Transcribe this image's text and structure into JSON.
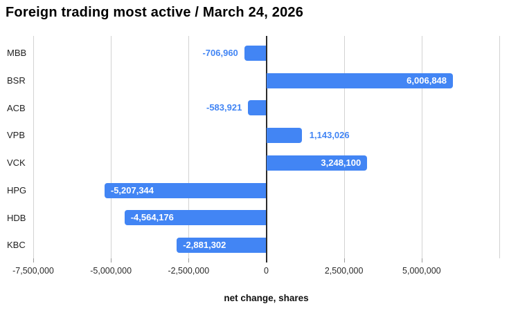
{
  "title": "Foreign trading most active / March 24, 2026",
  "colors": {
    "bar": "#4285f4",
    "label_inside": "#ffffff",
    "label_outside": "#4285f4",
    "gridline": "#d2d2d2",
    "zero_line": "#2b2b2b",
    "tick_mark": "#9a9a9a",
    "axis_text": "#2a2a2a",
    "title_text": "#000000"
  },
  "chart_data": {
    "type": "bar",
    "orientation": "horizontal",
    "title": "Foreign trading most active / March 24, 2026",
    "xlabel": "net change, shares",
    "ylabel": "",
    "xlim": [
      -7500000,
      7500000
    ],
    "grid": true,
    "legend": "none",
    "categories": [
      "MBB",
      "BSR",
      "ACB",
      "VPB",
      "VCK",
      "HPG",
      "HDB",
      "KBC"
    ],
    "series": [
      {
        "name": "net change, shares",
        "values": [
          -706960,
          6006848,
          -583921,
          1143026,
          3248100,
          -5207344,
          -4564176,
          -2881302
        ],
        "value_labels": [
          "-706,960",
          "6,006,848",
          "-583,921",
          "1,143,026",
          "3,248,100",
          "-5,207,344",
          "-4,564,176",
          "-2,881,302"
        ],
        "label_placement": [
          "outside",
          "inside",
          "outside",
          "outside",
          "inside",
          "inside",
          "inside",
          "inside"
        ]
      }
    ],
    "x_ticks": [
      {
        "value": -7500000,
        "label": "-7,500,000"
      },
      {
        "value": -5000000,
        "label": "-5,000,000"
      },
      {
        "value": -2500000,
        "label": "-2,500,000"
      },
      {
        "value": 0,
        "label": "0"
      },
      {
        "value": 2500000,
        "label": "2,500,000"
      },
      {
        "value": 5000000,
        "label": "5,000,000"
      }
    ],
    "grid_values": [
      -7500000,
      -5000000,
      -2500000,
      0,
      2500000,
      5000000,
      7500000
    ]
  }
}
